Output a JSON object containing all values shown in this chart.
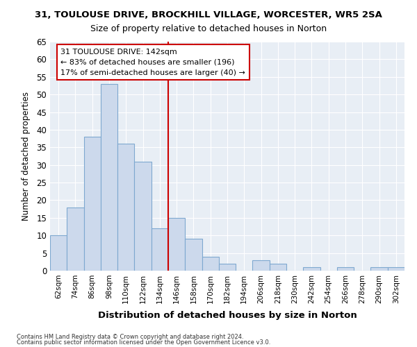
{
  "title1": "31, TOULOUSE DRIVE, BROCKHILL VILLAGE, WORCESTER, WR5 2SA",
  "title2": "Size of property relative to detached houses in Norton",
  "xlabel": "Distribution of detached houses by size in Norton",
  "ylabel": "Number of detached properties",
  "bar_labels": [
    "62sqm",
    "74sqm",
    "86sqm",
    "98sqm",
    "110sqm",
    "122sqm",
    "134sqm",
    "146sqm",
    "158sqm",
    "170sqm",
    "182sqm",
    "194sqm",
    "206sqm",
    "218sqm",
    "230sqm",
    "242sqm",
    "254sqm",
    "266sqm",
    "278sqm",
    "290sqm",
    "302sqm"
  ],
  "bar_values": [
    10,
    18,
    38,
    53,
    36,
    31,
    12,
    15,
    9,
    4,
    2,
    0,
    3,
    2,
    0,
    1,
    0,
    1,
    0,
    1,
    1
  ],
  "bar_color": "#ccd9ec",
  "bar_edge_color": "#7ea8d0",
  "vline_color": "#cc0000",
  "annotation_text": "31 TOULOUSE DRIVE: 142sqm\n← 83% of detached houses are smaller (196)\n17% of semi-detached houses are larger (40) →",
  "annotation_box_color": "#ffffff",
  "annotation_box_edge": "#cc0000",
  "fig_background": "#ffffff",
  "plot_background": "#e8eef5",
  "grid_color": "#ffffff",
  "ylim": [
    0,
    65
  ],
  "yticks": [
    0,
    5,
    10,
    15,
    20,
    25,
    30,
    35,
    40,
    45,
    50,
    55,
    60,
    65
  ],
  "footnote1": "Contains HM Land Registry data © Crown copyright and database right 2024.",
  "footnote2": "Contains public sector information licensed under the Open Government Licence v3.0."
}
